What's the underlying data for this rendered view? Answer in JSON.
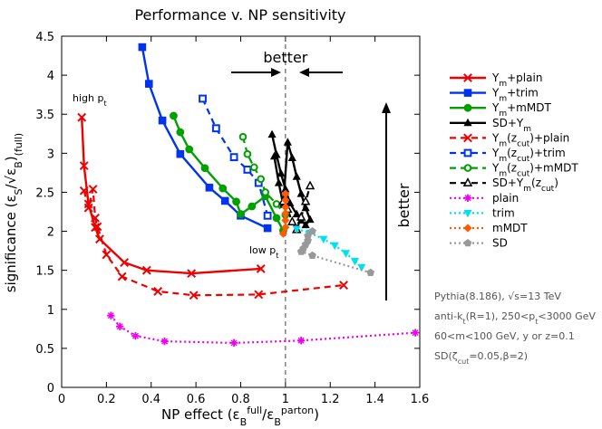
{
  "chart_data": {
    "type": "line",
    "title": "Performance v. NP sensitivity",
    "xlabel": "NP effect (ε_B^full / ε_B^parton)",
    "ylabel": "significance (ε_S/√ε_B)(full)",
    "xlim": [
      0,
      1.6
    ],
    "ylim": [
      0,
      4.5
    ],
    "xticks": [
      "0",
      "0.2",
      "0.4",
      "0.6",
      "0.8",
      "1",
      "1.2",
      "1.4",
      "1.6"
    ],
    "yticks": [
      "0",
      "0.5",
      "1",
      "1.5",
      "2",
      "2.5",
      "3",
      "3.5",
      "4",
      "4.5"
    ],
    "reference_line_x": 1.0,
    "series": [
      {
        "name": "Ym+plain",
        "color": "#ee0000",
        "marker": "x",
        "line": "solid",
        "x": [
          0.09,
          0.1,
          0.12,
          0.15,
          0.17,
          0.28,
          0.38,
          0.58,
          0.89
        ],
        "y": [
          3.46,
          2.84,
          2.35,
          2.05,
          1.9,
          1.6,
          1.5,
          1.46,
          1.52
        ]
      },
      {
        "name": "Ym+trim",
        "color": "#0033ee",
        "marker": "square",
        "line": "solid",
        "x": [
          0.36,
          0.39,
          0.45,
          0.53,
          0.66,
          0.73,
          0.8,
          0.92
        ],
        "y": [
          4.36,
          3.89,
          3.42,
          2.99,
          2.56,
          2.39,
          2.2,
          2.04
        ]
      },
      {
        "name": "Ym+mMDT",
        "color": "#00a000",
        "marker": "circle",
        "line": "solid",
        "x": [
          0.5,
          0.53,
          0.57,
          0.64,
          0.72,
          0.78,
          0.8,
          0.85,
          0.91,
          0.96,
          0.99
        ],
        "y": [
          3.48,
          3.27,
          3.05,
          2.81,
          2.55,
          2.38,
          2.22,
          2.32,
          2.45,
          2.17,
          2.01
        ]
      },
      {
        "name": "SD+Ym",
        "color": "#000000",
        "marker": "triangle",
        "line": "solid",
        "x": [
          0.94,
          0.96,
          0.98,
          1.0,
          1.02,
          1.05,
          1.07,
          1.09,
          1.11,
          1.09,
          1.07,
          1.05,
          1.03,
          1.01,
          0.99,
          0.97,
          0.95
        ],
        "y": [
          3.24,
          2.98,
          2.74,
          2.54,
          2.36,
          2.22,
          2.14,
          2.08,
          2.15,
          2.3,
          2.48,
          2.7,
          2.94,
          3.14,
          2.34,
          2.62,
          2.96
        ]
      },
      {
        "name": "Ym(zcut)+plain",
        "color": "#ee0000",
        "marker": "x",
        "line": "dashed",
        "x": [
          0.1,
          0.12,
          0.14,
          0.15,
          0.16,
          0.2,
          0.27,
          0.43,
          0.59,
          0.88,
          1.26
        ],
        "y": [
          2.52,
          2.3,
          2.54,
          2.17,
          2.06,
          1.7,
          1.42,
          1.23,
          1.18,
          1.19,
          1.31
        ]
      },
      {
        "name": "Ym(zcut)+trim",
        "color": "#0033ee",
        "marker": "square-open",
        "line": "dashed",
        "x": [
          0.63,
          0.69,
          0.77,
          0.83,
          0.88,
          0.92
        ],
        "y": [
          3.7,
          3.32,
          2.95,
          2.79,
          2.62,
          2.2
        ]
      },
      {
        "name": "Ym(zcut)+mMDT",
        "color": "#00a000",
        "marker": "circle-open",
        "line": "dashed",
        "x": [
          0.81,
          0.83,
          0.86,
          0.89,
          0.91,
          0.96,
          1.0
        ],
        "y": [
          3.21,
          2.99,
          2.82,
          2.67,
          2.5,
          2.35,
          2.21
        ]
      },
      {
        "name": "SD+Ym(zcut)",
        "color": "#000000",
        "marker": "triangle-open",
        "line": "dashed",
        "x": [
          0.99,
          1.01,
          1.03,
          1.05,
          1.07,
          1.09,
          1.11
        ],
        "y": [
          2.38,
          2.28,
          2.12,
          2.02,
          2.18,
          2.38,
          2.58
        ]
      },
      {
        "name": "plain",
        "color": "#ee00ee",
        "marker": "star",
        "line": "dotted",
        "x": [
          0.22,
          0.26,
          0.33,
          0.46,
          0.77,
          1.07,
          1.58
        ],
        "y": [
          0.92,
          0.78,
          0.66,
          0.59,
          0.57,
          0.6,
          0.7
        ]
      },
      {
        "name": "trim",
        "color": "#00e0ee",
        "marker": "triangle-down",
        "line": "dotted",
        "x": [
          1.05,
          1.11,
          1.17,
          1.22,
          1.27,
          1.31,
          1.34
        ],
        "y": [
          2.03,
          1.98,
          1.9,
          1.82,
          1.72,
          1.62,
          1.54
        ]
      },
      {
        "name": "mMDT",
        "color": "#ff5a00",
        "marker": "diamond",
        "line": "dotted",
        "x": [
          1.0,
          1.0,
          1.0,
          1.0,
          1.0,
          1.0,
          0.99
        ],
        "y": [
          2.48,
          2.4,
          2.31,
          2.23,
          2.14,
          2.05,
          1.97
        ]
      },
      {
        "name": "SD",
        "color": "#999999",
        "marker": "pentagon",
        "line": "dotted",
        "x": [
          1.12,
          1.1,
          1.1,
          1.09,
          1.08,
          1.07,
          1.12,
          1.38
        ],
        "y": [
          2.0,
          1.94,
          1.88,
          1.83,
          1.78,
          1.74,
          1.69,
          1.47
        ]
      }
    ],
    "legend": [
      {
        "label": "Ym+plain",
        "series": 0
      },
      {
        "label": "Ym+trim",
        "series": 1
      },
      {
        "label": "Ym+mMDT",
        "series": 2
      },
      {
        "label": "SD+Ym",
        "series": 3
      },
      {
        "label": "Ym(zcut)+plain",
        "series": 4
      },
      {
        "label": "Ym(zcut)+trim",
        "series": 5
      },
      {
        "label": "Ym(zcut)+mMDT",
        "series": 6
      },
      {
        "label": "SD+Ym(zcut)",
        "series": 7
      },
      {
        "label": "plain",
        "series": 8
      },
      {
        "label": "trim",
        "series": 9
      },
      {
        "label": "mMDT",
        "series": 10
      },
      {
        "label": "SD",
        "series": 11
      }
    ],
    "annotations": {
      "better_horizontal": "better",
      "better_vertical": "better",
      "high_pt": "high pt",
      "low_pt": "low pt"
    },
    "info_lines": [
      "Pythia(8.186), √s=13 TeV",
      "anti-kt(R=1), 250<pt<3000 GeV",
      "60<m<100 GeV, y or z=0.1",
      "SD(ζcut=0.05,β=2)"
    ]
  }
}
